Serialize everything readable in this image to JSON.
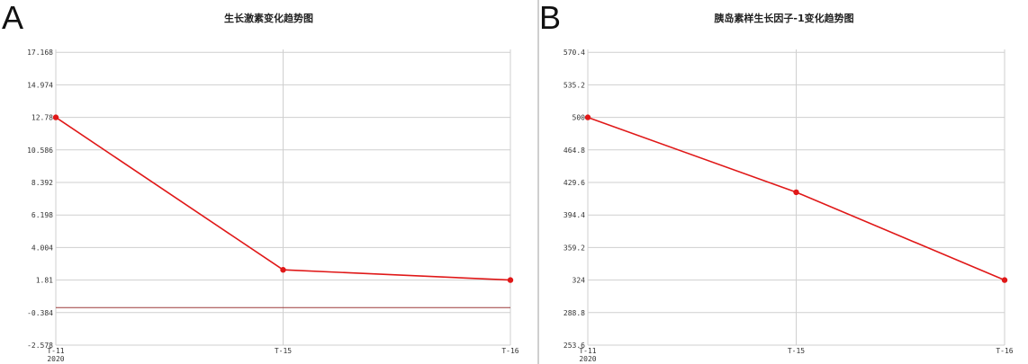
{
  "colors": {
    "series": "#e01818",
    "grid": "#cfcfcf",
    "reference_line": "#9b3a3a"
  },
  "chart_data": [
    {
      "panel": "A",
      "type": "line",
      "title": "生长激素变化趋势图",
      "x": [
        "T-11",
        "T-15",
        "T-16"
      ],
      "x_sublabels": [
        "2020",
        "",
        ""
      ],
      "y_ticks": [
        "-2.578",
        "-0.384",
        "1.81",
        "4.004",
        "6.198",
        "8.392",
        "10.586",
        "12.78",
        "14.974",
        "17.168"
      ],
      "ylim": [
        -2.578,
        19.362
      ],
      "series": [
        {
          "values": [
            12.78,
            2.5,
            1.81
          ]
        }
      ],
      "reference_line": -0.05,
      "grid": true
    },
    {
      "panel": "B",
      "type": "line",
      "title": "胰岛素样生长因子-1变化趋势图",
      "x": [
        "T-11",
        "T-15",
        "T-16"
      ],
      "x_sublabels": [
        "2020",
        "",
        ""
      ],
      "y_ticks": [
        "253.6",
        "288.8",
        "324",
        "359.2",
        "394.4",
        "429.6",
        "464.8",
        "500",
        "535.2",
        "570.4"
      ],
      "ylim": [
        253.6,
        605.6
      ],
      "series": [
        {
          "values": [
            500,
            419,
            324
          ]
        }
      ],
      "grid": true
    }
  ]
}
